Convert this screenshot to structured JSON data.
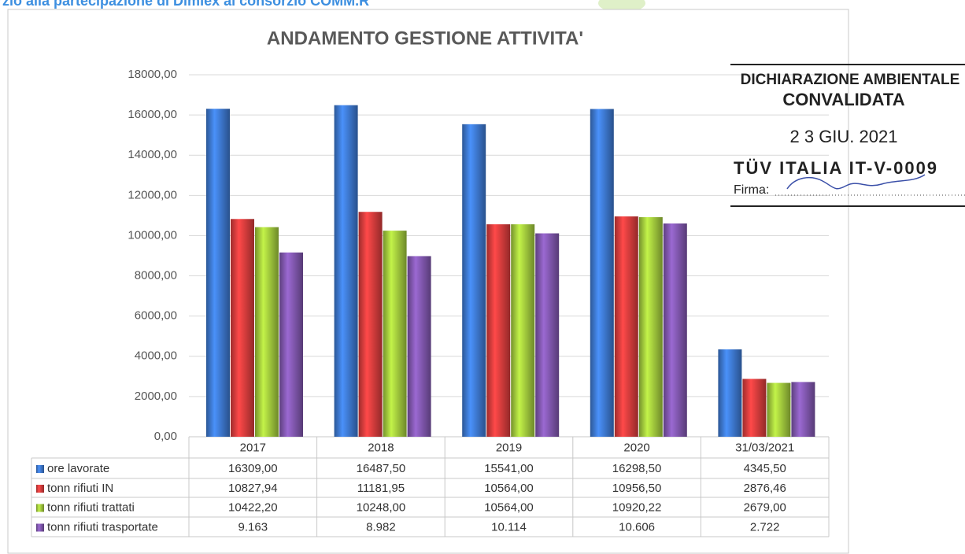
{
  "header": {
    "text": "rzio alla partecipazione di Dimlex al consorzio COMM.R"
  },
  "stamp": {
    "line1": "DICHIARAZIONE AMBIENTALE",
    "line2": "CONVALIDATA",
    "date": "2 3 GIU. 2021",
    "body": "TÜV ITALIA IT-V-0009",
    "sign": "Firma:"
  },
  "chart_data": {
    "type": "bar",
    "title": "ANDAMENTO GESTIONE ATTIVITA'",
    "categories": [
      "2017",
      "2018",
      "2019",
      "2020",
      "31/03/2021"
    ],
    "series": [
      {
        "name": "ore lavorate",
        "color": "#3b74c8",
        "values": [
          16309,
          16487.5,
          15541,
          16298.5,
          4345.5
        ],
        "value_labels": [
          "16309,00",
          "16487,50",
          "15541,00",
          "16298,50",
          "4345,50"
        ]
      },
      {
        "name": "tonn rifiuti IN",
        "color": "#d23a3a",
        "values": [
          10827.94,
          11181.95,
          10564,
          10956.5,
          2876.46
        ],
        "value_labels": [
          "10827,94",
          "11181,95",
          "10564,00",
          "10956,50",
          "2876,46"
        ]
      },
      {
        "name": "tonn rifiuti trattati",
        "color": "#9cc23a",
        "values": [
          10422.2,
          10248,
          10564,
          10920.22,
          2679
        ],
        "value_labels": [
          "10422,20",
          "10248,00",
          "10564,00",
          "10920,22",
          "2679,00"
        ]
      },
      {
        "name": "tonn rifiuti trasportate",
        "color": "#7c54a8",
        "values": [
          9163,
          8982,
          10114,
          10606,
          2722
        ],
        "value_labels": [
          "9.163",
          "8.982",
          "10.114",
          "10.606",
          "2.722"
        ]
      }
    ],
    "ylim": [
      0,
      18000
    ],
    "yticks": [
      {
        "value": 0,
        "label": "0,00"
      },
      {
        "value": 2000,
        "label": "2000,00"
      },
      {
        "value": 4000,
        "label": "4000,00"
      },
      {
        "value": 6000,
        "label": "6000,00"
      },
      {
        "value": 8000,
        "label": "8000,00"
      },
      {
        "value": 10000,
        "label": "10000,00"
      },
      {
        "value": 12000,
        "label": "12000,00"
      },
      {
        "value": 14000,
        "label": "14000,00"
      },
      {
        "value": 16000,
        "label": "16000,00"
      },
      {
        "value": 18000,
        "label": "18000,00"
      }
    ],
    "grid": true
  }
}
